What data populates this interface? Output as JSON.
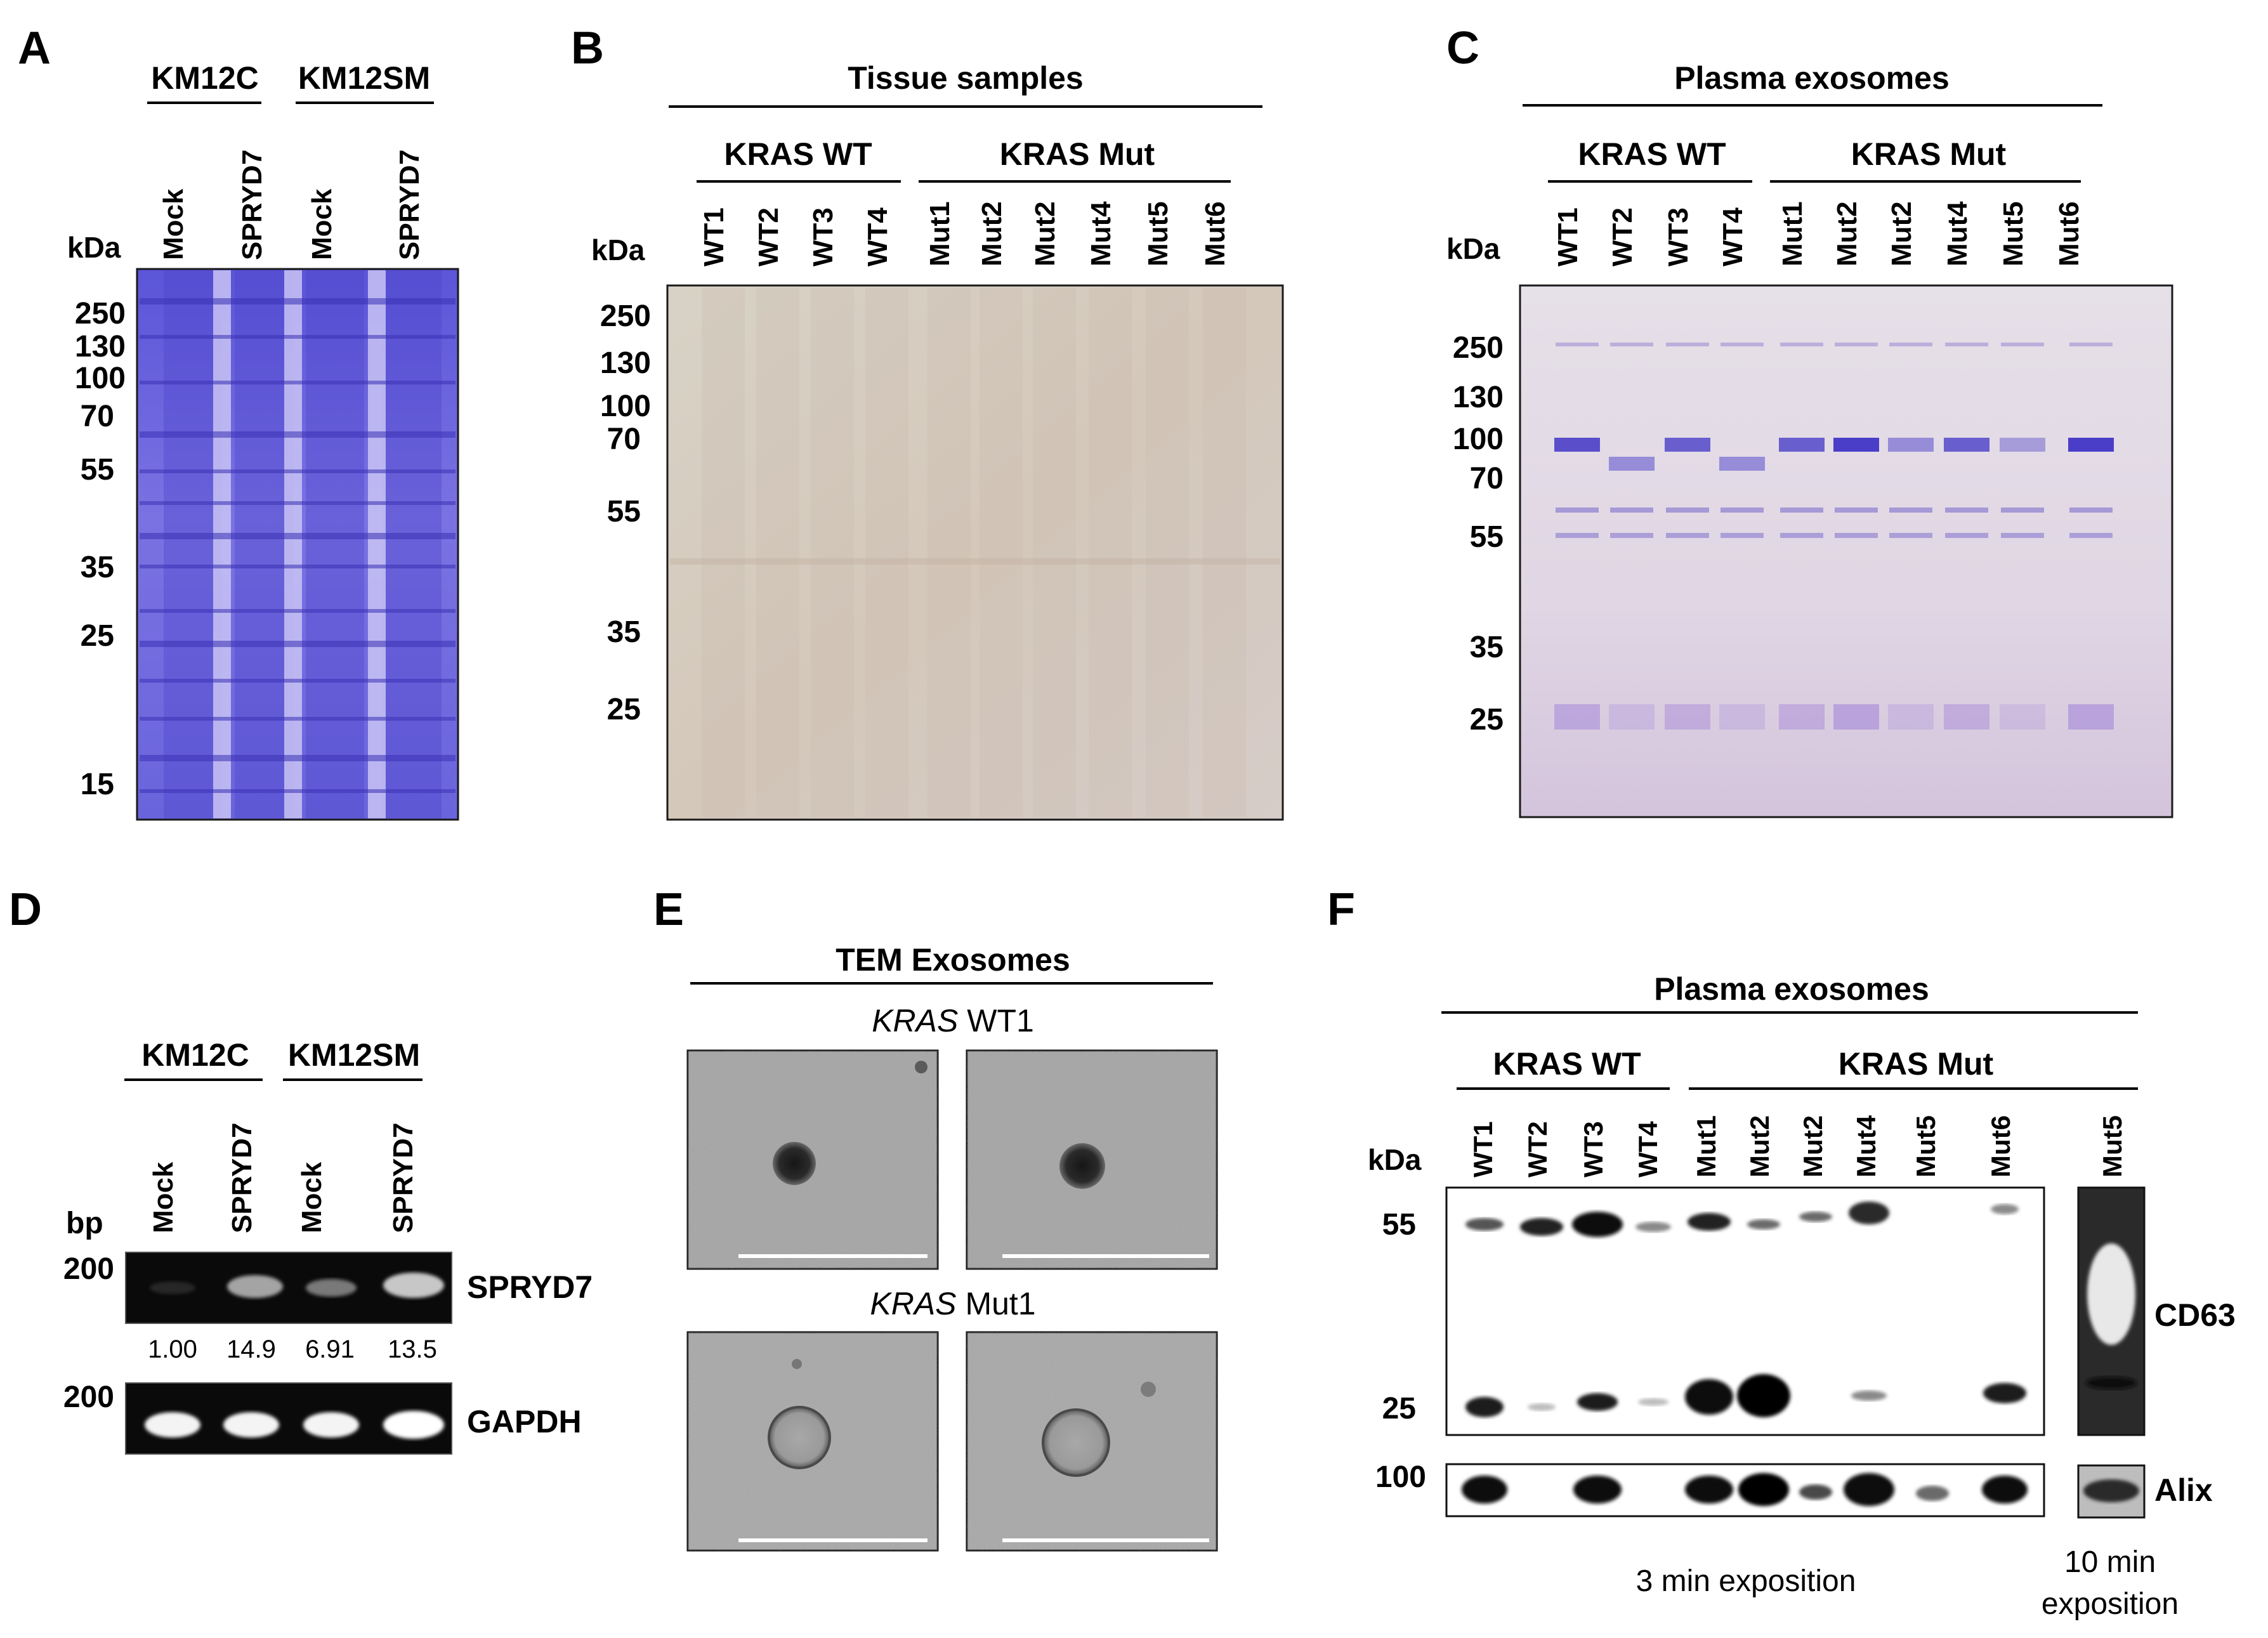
{
  "panel_letters": [
    "A",
    "B",
    "C",
    "D",
    "E",
    "F"
  ],
  "unit_kda": "kDa",
  "unit_bp": "bp",
  "panel_a": {
    "groups": [
      "KM12C",
      "KM12SM"
    ],
    "lanes": [
      "Mock",
      "SPRYD7",
      "Mock",
      "SPRYD7"
    ],
    "markers": [
      "250",
      "130",
      "100",
      "70",
      "55",
      "35",
      "25",
      "15"
    ]
  },
  "panel_b": {
    "title": "Tissue samples",
    "groups": [
      "KRAS WT",
      "KRAS Mut"
    ],
    "lanes": [
      "WT1",
      "WT2",
      "WT3",
      "WT4",
      "Mut1",
      "Mut2",
      "Mut2",
      "Mut4",
      "Mut5",
      "Mut6"
    ],
    "markers": [
      "250",
      "130",
      "100",
      "70",
      "55",
      "35",
      "25"
    ]
  },
  "panel_c": {
    "title": "Plasma exosomes",
    "groups": [
      "KRAS WT",
      "KRAS Mut"
    ],
    "lanes": [
      "WT1",
      "WT2",
      "WT3",
      "WT4",
      "Mut1",
      "Mut2",
      "Mut2",
      "Mut4",
      "Mut5",
      "Mut6"
    ],
    "markers": [
      "250",
      "130",
      "100",
      "70",
      "55",
      "35",
      "25"
    ]
  },
  "panel_d": {
    "groups": [
      "KM12C",
      "KM12SM"
    ],
    "lanes": [
      "Mock",
      "SPRYD7",
      "Mock",
      "SPRYD7"
    ],
    "marker": "200",
    "gene1": "SPRYD7",
    "gene2": "GAPDH",
    "ratios": [
      "1.00",
      "14.9",
      "6.91",
      "13.5"
    ]
  },
  "panel_e": {
    "title": "TEM Exosomes",
    "sample1_italic": "KRAS",
    "sample1_rest": " WT1",
    "sample2_italic": "KRAS",
    "sample2_rest": " Mut1"
  },
  "panel_f": {
    "title": "Plasma exosomes",
    "groups": [
      "KRAS WT",
      "KRAS Mut"
    ],
    "lanes": [
      "WT1",
      "WT2",
      "WT3",
      "WT4",
      "Mut1",
      "Mut2",
      "Mut2",
      "Mut4",
      "Mut5",
      "Mut6"
    ],
    "extra_lane": "Mut5",
    "markers": [
      "55",
      "25",
      "100"
    ],
    "protein1": "CD63",
    "protein2": "Alix",
    "exposure1": "3 min exposition",
    "exposure2_line1": "10 min",
    "exposure2_line2": "exposition"
  }
}
